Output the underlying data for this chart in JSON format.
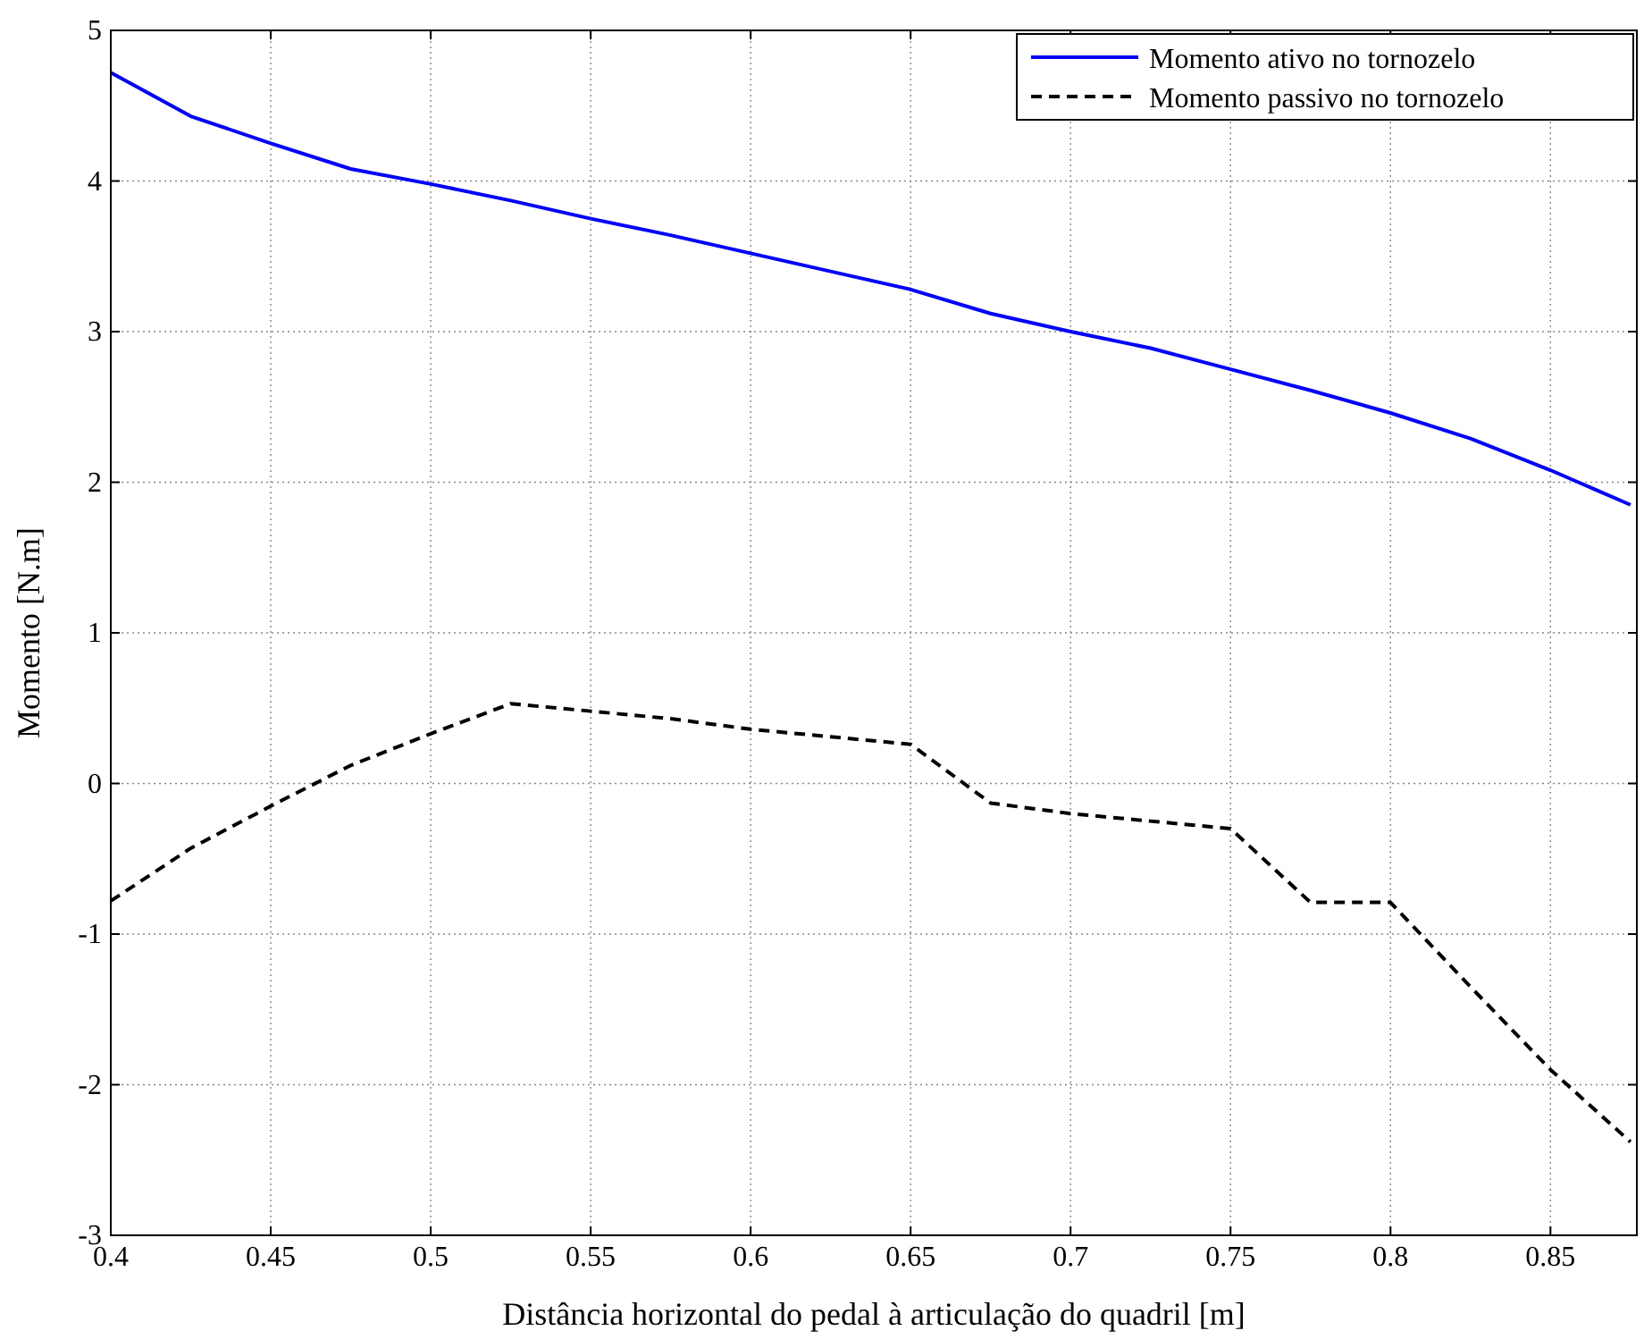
{
  "chart_data": {
    "type": "line",
    "xlabel": "Distância horizontal do pedal à articulação do quadril [m]",
    "ylabel": "Momento [N.m]",
    "x": [
      0.4,
      0.425,
      0.45,
      0.475,
      0.5,
      0.525,
      0.55,
      0.575,
      0.6,
      0.625,
      0.65,
      0.675,
      0.7,
      0.725,
      0.75,
      0.775,
      0.8,
      0.825,
      0.85,
      0.875
    ],
    "series": [
      {
        "name": "Momento ativo no tornozelo",
        "color": "#0000ff",
        "line_style": "solid",
        "values": [
          4.72,
          4.43,
          4.25,
          4.08,
          3.98,
          3.87,
          3.75,
          3.64,
          3.52,
          3.4,
          3.28,
          3.12,
          3.0,
          2.89,
          2.75,
          2.61,
          2.46,
          2.29,
          2.08,
          1.85
        ]
      },
      {
        "name": "Momento passivo no tornozelo",
        "color": "#000000",
        "line_style": "dashed",
        "values": [
          -0.78,
          -0.43,
          -0.15,
          0.12,
          0.33,
          0.53,
          0.48,
          0.43,
          0.36,
          0.31,
          0.26,
          -0.13,
          -0.2,
          -0.25,
          -0.3,
          -0.79,
          -0.79,
          -1.35,
          -1.9,
          -2.38
        ]
      }
    ],
    "xlim": [
      0.4,
      0.877
    ],
    "xticks": [
      0.4,
      0.45,
      0.5,
      0.55,
      0.6,
      0.65,
      0.7,
      0.75,
      0.8,
      0.85
    ],
    "ylim": [
      -3,
      5
    ],
    "yticks": [
      -3,
      -2,
      -1,
      0,
      1,
      2,
      3,
      4,
      5
    ],
    "grid": true,
    "legend": "top right"
  }
}
